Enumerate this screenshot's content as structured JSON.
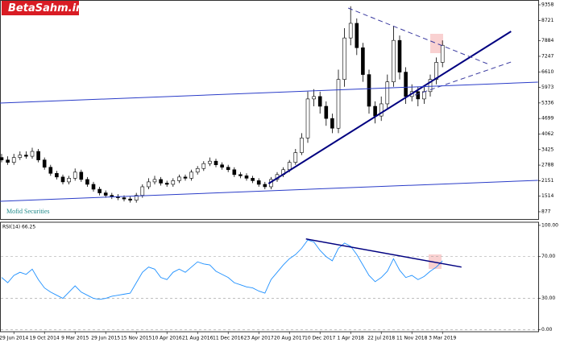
{
  "logo": "BetaSahm.ir",
  "chart_data": [
    {
      "type": "candlestick",
      "annotation": "Mofid Securities",
      "categories": [
        null,
        null,
        "29 Jun 2014",
        null,
        null,
        null,
        null,
        "19 Oct 2014",
        null,
        null,
        null,
        null,
        "9 Mar 2015",
        null,
        null,
        null,
        null,
        "29 Jun 2015",
        null,
        null,
        null,
        null,
        "15 Nov 2015",
        null,
        null,
        null,
        null,
        "10 Apr 2016",
        null,
        null,
        null,
        null,
        "21 Aug 2016",
        null,
        null,
        null,
        null,
        "11 Dec 2016",
        null,
        null,
        null,
        null,
        "23 Apr 2017",
        null,
        null,
        null,
        null,
        "20 Aug 2017",
        null,
        null,
        null,
        null,
        "10 Dec 2017",
        null,
        null,
        null,
        null,
        "1 Apr 2018",
        null,
        null,
        null,
        null,
        "22 Jul 2018",
        null,
        null,
        null,
        null,
        "11 Nov 2018",
        null,
        null,
        null,
        null,
        "3 Mar 2019"
      ],
      "open": [
        3100,
        3000,
        2900,
        3100,
        3200,
        3150,
        3350,
        3000,
        2700,
        2450,
        2300,
        2100,
        2250,
        2500,
        2200,
        2000,
        1800,
        1650,
        1550,
        1500,
        1450,
        1400,
        1350,
        1550,
        1900,
        2100,
        2200,
        2050,
        2000,
        2150,
        2300,
        2250,
        2500,
        2650,
        2850,
        2950,
        2800,
        2700,
        2600,
        2400,
        2350,
        2250,
        2150,
        2000,
        1900,
        2200,
        2400,
        2600,
        2900,
        3300,
        3900,
        5500,
        5600,
        5200,
        4700,
        4300,
        6300,
        8000,
        8600,
        7600,
        6500,
        5200,
        4800,
        5300,
        6200,
        7900,
        6600,
        5600,
        5800,
        5500,
        5800,
        6300,
        7000
      ],
      "high": [
        3250,
        3150,
        3250,
        3350,
        3350,
        3500,
        3450,
        3100,
        2800,
        2550,
        2400,
        2350,
        2650,
        2600,
        2300,
        2100,
        1900,
        1750,
        1650,
        1600,
        1550,
        1500,
        1650,
        2000,
        2250,
        2350,
        2300,
        2150,
        2250,
        2400,
        2400,
        2600,
        2750,
        2950,
        3100,
        3050,
        2900,
        2800,
        2700,
        2500,
        2450,
        2350,
        2250,
        2100,
        2300,
        2500,
        2700,
        3000,
        3450,
        4100,
        5800,
        5900,
        5800,
        5400,
        4900,
        6700,
        8400,
        9300,
        8800,
        7800,
        6700,
        5400,
        5600,
        6500,
        8500,
        8100,
        6800,
        6100,
        6000,
        6000,
        6500,
        7200,
        7900
      ],
      "low": [
        2900,
        2800,
        2800,
        3000,
        3050,
        3050,
        2900,
        2600,
        2350,
        2200,
        2000,
        2000,
        2150,
        2100,
        1900,
        1700,
        1550,
        1450,
        1400,
        1350,
        1300,
        1250,
        1250,
        1450,
        1800,
        2000,
        1950,
        1900,
        1900,
        2050,
        2150,
        2150,
        2400,
        2550,
        2750,
        2700,
        2600,
        2500,
        2300,
        2250,
        2150,
        2050,
        1900,
        1800,
        1800,
        2100,
        2300,
        2500,
        2800,
        3200,
        3700,
        5200,
        4900,
        4400,
        4100,
        4100,
        6000,
        7700,
        7300,
        6200,
        4900,
        4500,
        4600,
        5100,
        6000,
        6300,
        5300,
        5400,
        5200,
        5300,
        5600,
        6100,
        6800
      ],
      "close": [
        3000,
        2900,
        3100,
        3200,
        3150,
        3350,
        3000,
        2700,
        2450,
        2300,
        2100,
        2250,
        2500,
        2200,
        2000,
        1800,
        1650,
        1550,
        1500,
        1450,
        1400,
        1350,
        1550,
        1900,
        2100,
        2200,
        2050,
        2000,
        2150,
        2300,
        2250,
        2500,
        2650,
        2850,
        2950,
        2800,
        2700,
        2600,
        2400,
        2350,
        2250,
        2150,
        2000,
        1900,
        2200,
        2400,
        2600,
        2900,
        3300,
        3900,
        5500,
        5600,
        5200,
        4700,
        4300,
        6300,
        8000,
        8600,
        7600,
        6500,
        5200,
        4800,
        5300,
        6200,
        7900,
        6600,
        5600,
        5800,
        5500,
        5800,
        6300,
        7000,
        7700
      ],
      "up_color": "#ffffff",
      "down_color": "#000000",
      "edge_color": "#000000",
      "ylim": [
        579,
        9556
      ],
      "yticks": [
        877,
        1514,
        2151,
        2788,
        3425,
        4062,
        4699,
        5336,
        5973,
        6610,
        7247,
        7884,
        8721,
        9358
      ],
      "trendlines": [
        {
          "x": [
            43.6,
            83.2
          ],
          "y": [
            2031,
            8269
          ],
          "color": "#000080",
          "width": 2,
          "dash": false
        },
        {
          "x": [
            56.6,
            79.6
          ],
          "y": [
            9226,
            6916
          ],
          "color": "#3a3aa0",
          "width": 1,
          "dash": true
        },
        {
          "x": [
            67.5,
            83.2
          ],
          "y": [
            5662,
            7015
          ],
          "color": "#3a3aa0",
          "width": 1,
          "dash": true
        },
        {
          "x": [
            -0.26,
            87.6
          ],
          "y": [
            5331,
            6190
          ],
          "color": "#2a3cc8",
          "width": 1,
          "dash": false
        },
        {
          "x": [
            -0.26,
            87.6
          ],
          "y": [
            1305,
            2163
          ],
          "color": "#2a3cc8",
          "width": 1,
          "dash": false
        }
      ]
    },
    {
      "type": "line",
      "title": "RSI(14) 66.25",
      "series": [
        {
          "name": "RSI(14)",
          "color": "#1e90ff",
          "values": [
            50,
            45,
            52,
            55,
            53,
            58,
            48,
            40,
            36,
            33,
            30,
            36,
            42,
            36,
            33,
            30,
            29,
            30,
            32,
            33,
            34,
            35,
            45,
            55,
            60,
            58,
            50,
            48,
            55,
            58,
            55,
            60,
            65,
            63,
            62,
            56,
            53,
            50,
            45,
            43,
            41,
            40,
            37,
            35,
            48,
            55,
            62,
            68,
            72,
            78,
            86,
            84,
            76,
            70,
            66,
            78,
            83,
            80,
            72,
            62,
            52,
            46,
            50,
            56,
            68,
            57,
            50,
            52,
            48,
            51,
            56,
            60,
            66
          ]
        }
      ],
      "ylim": [
        -2,
        103
      ],
      "yticks": [
        {
          "value": 0,
          "label": "0.00"
        },
        {
          "value": 30,
          "label": "30.00"
        },
        {
          "value": 70,
          "label": "70.00"
        },
        {
          "value": 100,
          "label": "100.00"
        }
      ],
      "trendlines": [
        {
          "x": [
            49.7,
            75.1
          ],
          "y": [
            87,
            60
          ],
          "color": "#000080",
          "width": 1.5,
          "dash": false
        }
      ]
    }
  ]
}
